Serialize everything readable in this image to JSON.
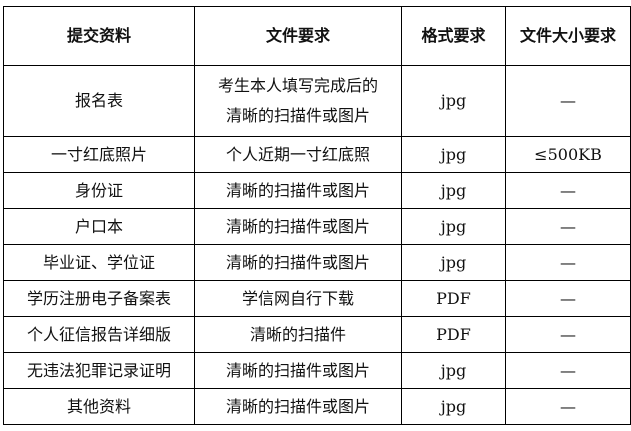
{
  "headers": [
    "提交资料",
    "文件要求",
    "格式要求",
    "文件大小要求"
  ],
  "rows": [
    {
      "material": "报名表",
      "requirement_lines": [
        "考生本人填写完成后的",
        "清晰的扫描件或图片"
      ],
      "format": "jpg",
      "size": "—"
    },
    {
      "material": "一寸红底照片",
      "requirement": "个人近期一寸红底照",
      "format": "jpg",
      "size": "≤500KB"
    },
    {
      "material": "身份证",
      "requirement": "清晰的扫描件或图片",
      "format": "jpg",
      "size": "—"
    },
    {
      "material": "户口本",
      "requirement": "清晰的扫描件或图片",
      "format": "jpg",
      "size": "—"
    },
    {
      "material": "毕业证、学位证",
      "requirement": "清晰的扫描件或图片",
      "format": "jpg",
      "size": "—"
    },
    {
      "material": "学历注册电子备案表",
      "requirement": "学信网自行下载",
      "format": "PDF",
      "size": "—"
    },
    {
      "material": "个人征信报告详细版",
      "requirement": "清晰的扫描件",
      "format": "PDF",
      "size": "—"
    },
    {
      "material": "无违法犯罪记录证明",
      "requirement": "清晰的扫描件或图片",
      "format": "jpg",
      "size": "—"
    },
    {
      "material": "其他资料",
      "requirement": "清晰的扫描件或图片",
      "format": "jpg",
      "size": "—"
    }
  ]
}
